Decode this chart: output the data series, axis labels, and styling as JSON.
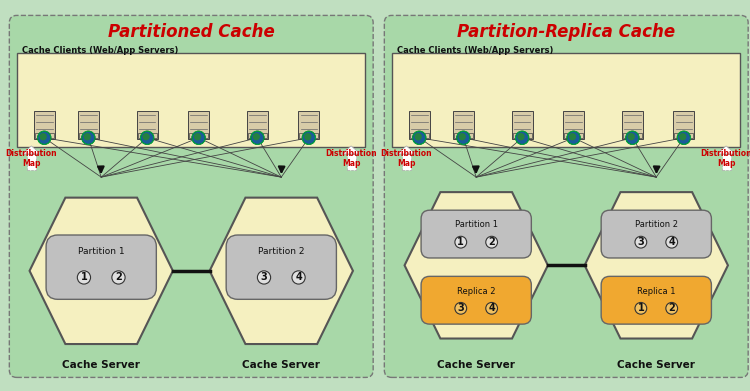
{
  "fig_bg": "#c0dfc0",
  "left_title": "Partitioned Cache",
  "right_title": "Partition-Replica Cache",
  "title_color": "#cc0000",
  "title_fontsize": 12,
  "clients_label": "Cache Clients (Web/App Servers)",
  "cache_server_label": "Cache Server",
  "panel_bg": "#a8d8a8",
  "clients_box_color": "#f5f0c0",
  "hex_color": "#f5f0c0",
  "partition_color": "#c0c0c0",
  "replica_color": "#f0a830",
  "dist_map_color": "#cc0000",
  "server_color": "#d8cca8",
  "line_color": "#444444"
}
